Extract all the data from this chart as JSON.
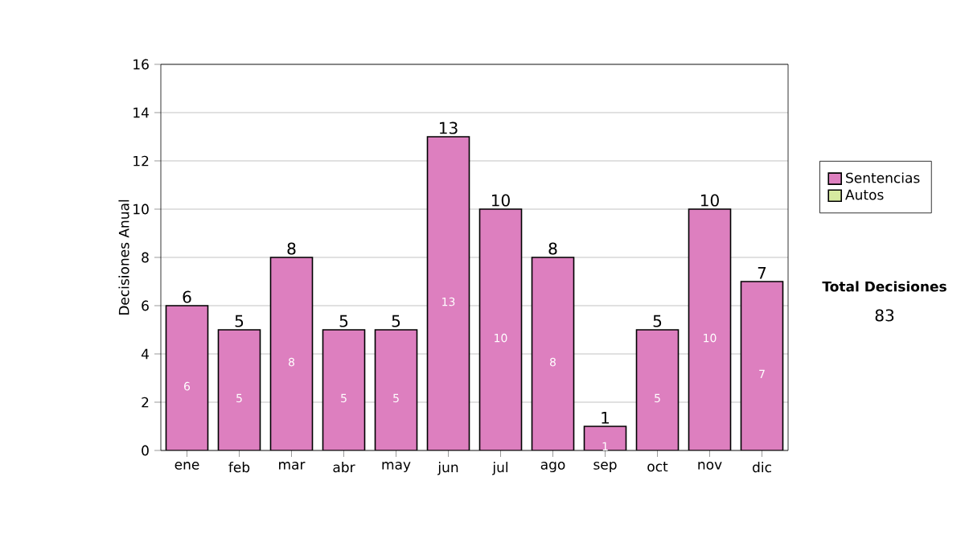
{
  "chart_data": {
    "type": "bar",
    "stacked": true,
    "ylabel": "Decisiones Anual",
    "categories": [
      "ene",
      "feb",
      "mar",
      "abr",
      "may",
      "jun",
      "jul",
      "ago",
      "sep",
      "oct",
      "nov",
      "dic"
    ],
    "series": [
      {
        "name": "Sentencias",
        "color": "#dd7fbf",
        "values": [
          6,
          5,
          8,
          5,
          5,
          13,
          10,
          8,
          1,
          5,
          10,
          7
        ],
        "value_labels": [
          "6",
          "5",
          "8",
          "5",
          "5",
          "13",
          "10",
          "8",
          "1",
          "5",
          "10",
          "7"
        ]
      },
      {
        "name": "Autos",
        "color": "#d6eaa0",
        "values": [
          0,
          0,
          0,
          0,
          0,
          0,
          0,
          0,
          0,
          0,
          0,
          0
        ]
      }
    ],
    "totals": [
      "6",
      "5",
      "8",
      "5",
      "5",
      "13",
      "10",
      "8",
      "1",
      "5",
      "10",
      "7"
    ],
    "ylim": [
      0,
      16
    ],
    "yticks": [
      0,
      2,
      4,
      6,
      8,
      10,
      12,
      14,
      16
    ],
    "grid": "y",
    "legend": "right",
    "annotations": [
      "Total Decisiones",
      "83"
    ]
  }
}
